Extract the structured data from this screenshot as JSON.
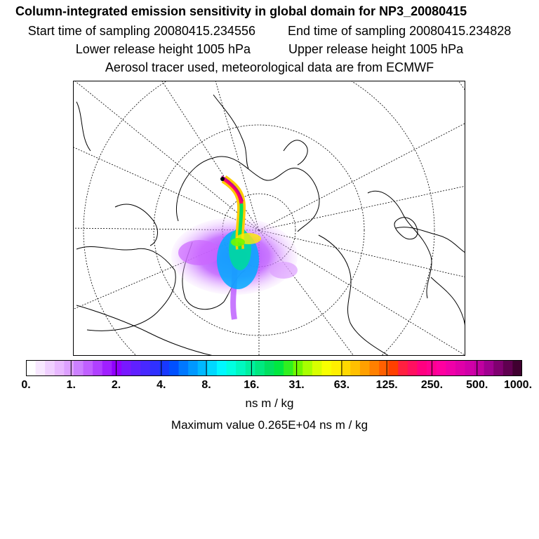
{
  "header": {
    "title": "Column-integrated emission sensitivity in global domain for NP3_20080415",
    "start_time": "Start time of sampling 20080415.234556",
    "end_time": "End time of sampling 20080415.234828",
    "lower_height": "Lower release height 1005 hPa",
    "upper_height": "Upper release height 1005 hPa",
    "tracer_info": "Aerosol tracer used, meteorological data are from ECMWF"
  },
  "map": {
    "projection": "polar-stereographic-north",
    "colors": {
      "frame": "#000000",
      "coast": "#000000",
      "grid": "#000000",
      "plume_low": "#cc66ff",
      "plume_mid": "#00cc44",
      "plume_high": "#ffee00",
      "plume_peak": "#ff0066"
    }
  },
  "colorbar": {
    "colors": [
      "#ffffff",
      "#f8e8ff",
      "#f0d0ff",
      "#e8b8ff",
      "#dda0ff",
      "#cc80ff",
      "#c060ff",
      "#b040ff",
      "#a020ff",
      "#9000ff",
      "#7818ff",
      "#6020ff",
      "#4828ff",
      "#3030ff",
      "#1838ff",
      "#0050ff",
      "#0078ff",
      "#0098ff",
      "#00b8ff",
      "#00d8ff",
      "#00f8ff",
      "#00ffe0",
      "#00f8c0",
      "#00f0a0",
      "#00e880",
      "#00e060",
      "#00e840",
      "#30f020",
      "#70f800",
      "#a8ff00",
      "#d8ff00",
      "#f8ff00",
      "#fff000",
      "#ffd800",
      "#ffc000",
      "#ffa000",
      "#ff8000",
      "#ff6000",
      "#ff4000",
      "#ff2040",
      "#ff1060",
      "#ff0080",
      "#ff0090",
      "#ff00a0",
      "#f000a8",
      "#e000a8",
      "#d000a8",
      "#c000a0",
      "#a00090",
      "#800070",
      "#600050",
      "#400030"
    ],
    "ticks": [
      "0.",
      "1.",
      "2.",
      "4.",
      "8.",
      "16.",
      "31.",
      "63.",
      "125.",
      "250.",
      "500.",
      "1000."
    ],
    "units": "ns m / kg",
    "max_label": "Maximum value  0.265E+04 ns m / kg"
  }
}
